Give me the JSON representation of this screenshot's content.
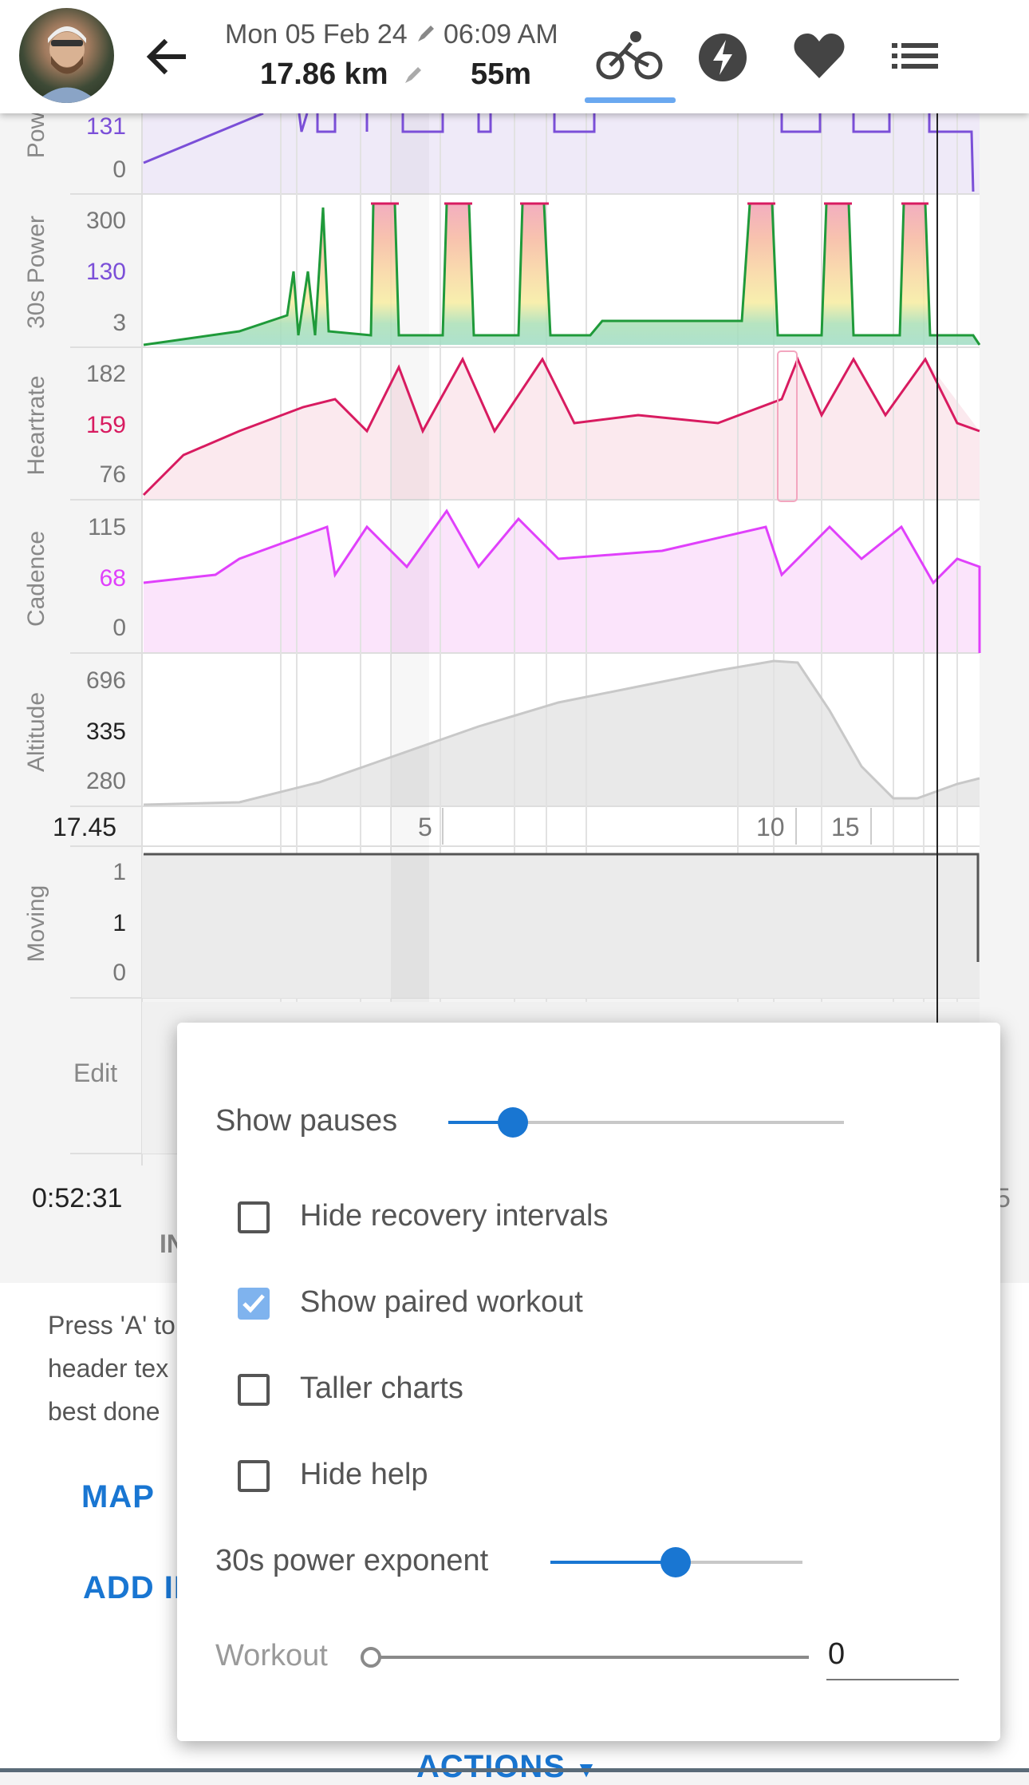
{
  "header": {
    "date": "Mon 05 Feb 24",
    "time": "06:09 AM",
    "distance": "17.86 km",
    "duration": "55m",
    "tabs": [
      "bike-icon",
      "bolt-icon",
      "heart-icon",
      "list-icon"
    ],
    "accent": "#6aa8f0"
  },
  "charts": {
    "power": {
      "label": "Pow",
      "top_value": "131",
      "bottom_value": "0",
      "color": "#7b4fd8"
    },
    "power30": {
      "label": "30s Power",
      "max": "300",
      "mid": "130",
      "min": "3",
      "color": "#7b4fd8"
    },
    "heartrate": {
      "label": "Heartrate",
      "max": "182",
      "mid": "159",
      "min": "76",
      "color": "#d81b60"
    },
    "cadence": {
      "label": "Cadence",
      "max": "115",
      "mid": "68",
      "min": "0",
      "color": "#e040fb"
    },
    "altitude": {
      "label": "Altitude",
      "max": "696",
      "mid": "335",
      "min": "280",
      "color": "#222222"
    },
    "distance_axis": {
      "left_value": "17.45",
      "ticks": [
        "5",
        "10",
        "15"
      ]
    },
    "moving": {
      "label": "Moving",
      "max": "1",
      "mid": "1",
      "min": "0"
    },
    "edit": {
      "label": "Edit"
    },
    "elapsed": "0:52:31",
    "elapsed_right": "5",
    "tab_fragment": "IN"
  },
  "help": {
    "lines": [
      "Press 'A' to",
      "header tex",
      "best done"
    ]
  },
  "buttons": {
    "map": "MAP",
    "add_interval": "ADD IN",
    "actions": "ACTIONS"
  },
  "dialog": {
    "show_pauses": {
      "label": "Show pauses",
      "value": 0.16
    },
    "hide_recovery": {
      "label": "Hide recovery intervals",
      "checked": false
    },
    "show_paired": {
      "label": "Show paired workout",
      "checked": true
    },
    "taller_charts": {
      "label": "Taller charts",
      "checked": false
    },
    "hide_help": {
      "label": "Hide help",
      "checked": false
    },
    "power_exponent": {
      "label": "30s power exponent",
      "value": 0.5
    },
    "workout": {
      "label": "Workout",
      "value": "0"
    }
  }
}
